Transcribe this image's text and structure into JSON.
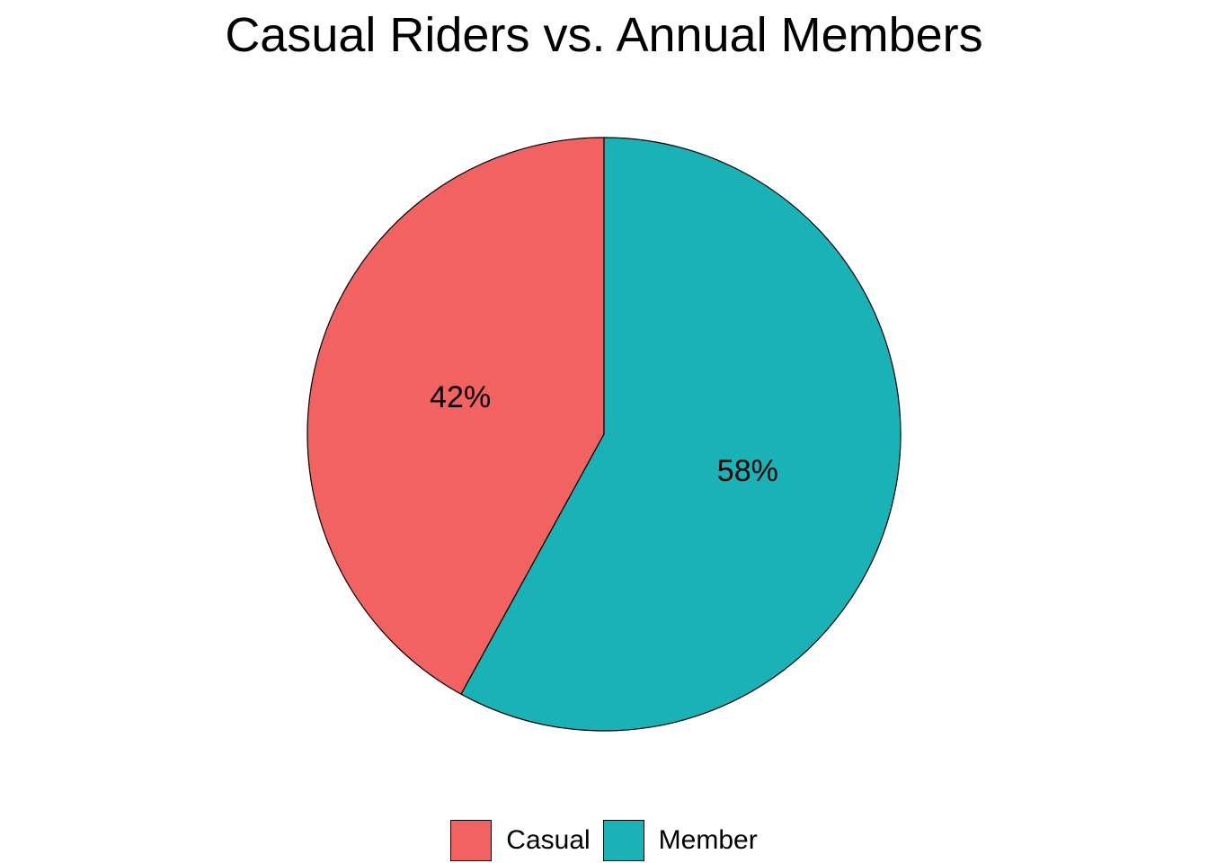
{
  "chart_data": {
    "type": "pie",
    "title": "Casual Riders vs. Annual Members",
    "slices": [
      {
        "label": "Casual",
        "value": 42,
        "display": "42%",
        "color": "#F26260"
      },
      {
        "label": "Member",
        "value": 58,
        "display": "58%",
        "color": "#19B3B7"
      }
    ],
    "legend_position": "bottom",
    "start": "top",
    "direction": "counterclockwise"
  },
  "legend": {
    "items": [
      {
        "label": "Casual",
        "color": "#F26260"
      },
      {
        "label": "Member",
        "color": "#19B3B7"
      }
    ]
  }
}
